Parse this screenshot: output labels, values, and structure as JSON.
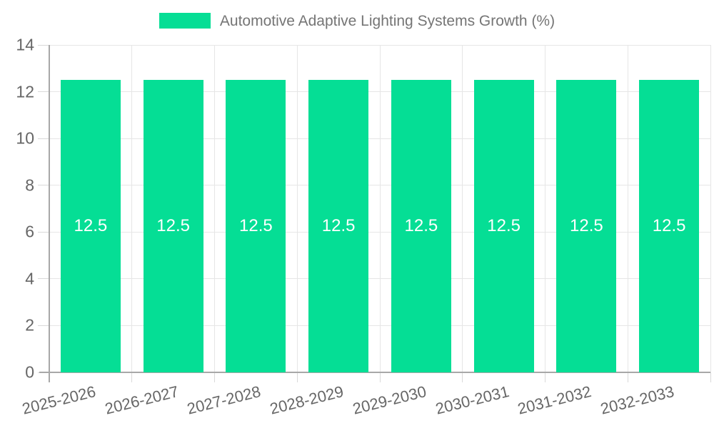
{
  "legend": {
    "label": "Automotive Adaptive Lighting Systems Growth (%)"
  },
  "chart_data": {
    "type": "bar",
    "title": "Automotive Adaptive Lighting Systems Growth (%)",
    "categories": [
      "2025-2026",
      "2026-2027",
      "2027-2028",
      "2028-2029",
      "2029-2030",
      "2030-2031",
      "2031-2032",
      "2032-2033"
    ],
    "values": [
      12.5,
      12.5,
      12.5,
      12.5,
      12.5,
      12.5,
      12.5,
      12.5
    ],
    "bar_labels": [
      "12.5",
      "12.5",
      "12.5",
      "12.5",
      "12.5",
      "12.5",
      "12.5",
      "12.5"
    ],
    "xlabel": "",
    "ylabel": "",
    "ylim": [
      0,
      14
    ],
    "yticks": [
      0,
      2,
      4,
      6,
      8,
      10,
      12,
      14
    ],
    "grid": true,
    "legend_position": "top",
    "colors": {
      "bar": "#05DE95",
      "bar_label": "#ffffff",
      "grid_line": "#e6e6e6",
      "tick_mark": "#d9d9d9",
      "axis_line": "#a8a8a8",
      "tick_text": "#666666",
      "legend_text": "#757575",
      "background": "#ffffff"
    }
  }
}
